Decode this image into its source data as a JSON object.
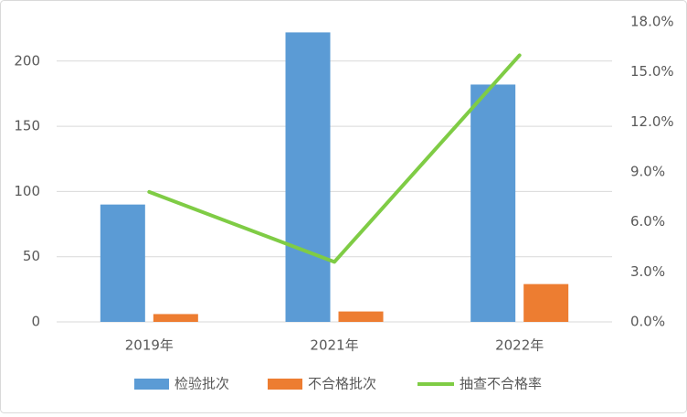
{
  "chart_data": {
    "type": "bar-line",
    "categories": [
      "2019年",
      "2021年",
      "2022年"
    ],
    "series": [
      {
        "name": "检验批次",
        "color": "#5b9bd5",
        "type": "bar",
        "values": [
          90,
          222,
          182
        ]
      },
      {
        "name": "不合格批次",
        "color": "#ed7d31",
        "type": "bar",
        "values": [
          6,
          8,
          29
        ]
      },
      {
        "name": "抽查不合格率",
        "color": "#7fcc45",
        "type": "line",
        "axis": "y2",
        "values": [
          7.8,
          3.6,
          16.0
        ]
      }
    ],
    "ylim": [
      0,
      230
    ],
    "yticks": [
      0,
      50,
      100,
      150,
      200
    ],
    "y2lim": [
      0,
      18
    ],
    "y2ticks": [
      {
        "value": 0,
        "label": "0.0%"
      },
      {
        "value": 3,
        "label": "3.0%"
      },
      {
        "value": 6,
        "label": "6.0%"
      },
      {
        "value": 9,
        "label": "9.0%"
      },
      {
        "value": 12,
        "label": "12.0%"
      },
      {
        "value": 15,
        "label": "15.0%"
      },
      {
        "value": 18,
        "label": "18.0%"
      }
    ],
    "grid": true,
    "legend": "bottom"
  }
}
